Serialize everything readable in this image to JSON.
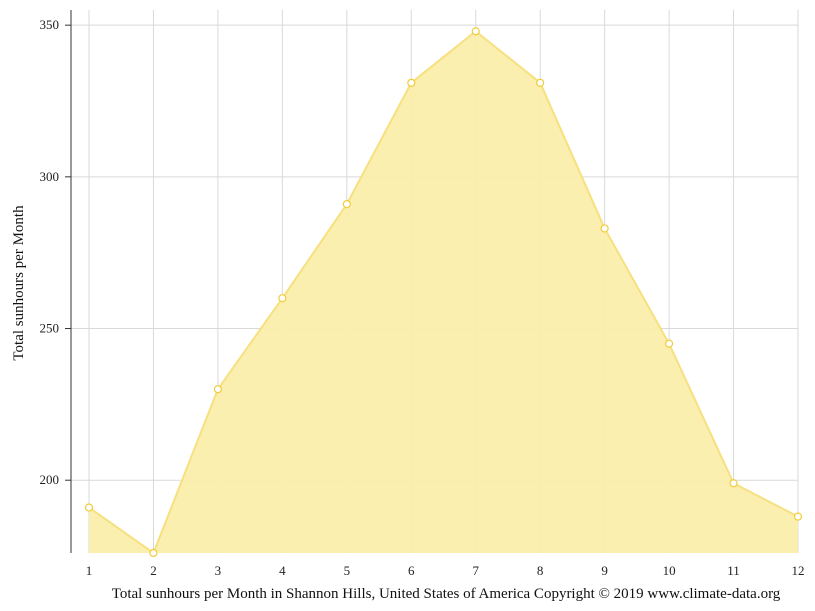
{
  "chart_data": {
    "type": "area",
    "x": [
      "1",
      "2",
      "3",
      "4",
      "5",
      "6",
      "7",
      "8",
      "9",
      "10",
      "11",
      "12"
    ],
    "series": [
      {
        "values": [
          191,
          176,
          230,
          260,
          291,
          331,
          348,
          331,
          283,
          245,
          199,
          188
        ],
        "color": "#f5d442"
      }
    ],
    "ylabel": "Total sunhours per Month",
    "caption": "Total sunhours per Month in Shannon Hills, United States of America Copyright © 2019 www.climate-data.org",
    "yticks": [
      200,
      250,
      300,
      350
    ],
    "ylim": [
      176,
      355
    ],
    "grid": true,
    "area_fill": "#faeeaa",
    "line_color": "#f7e07f",
    "marker_stroke": "#f0cc3a"
  }
}
